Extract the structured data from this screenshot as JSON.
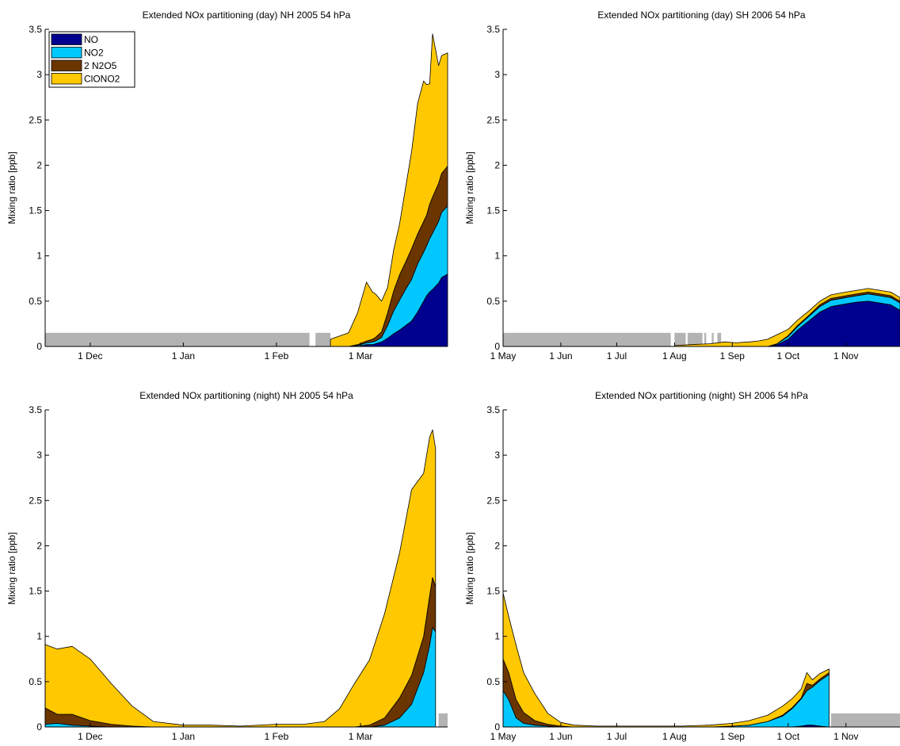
{
  "colors": {
    "NO": "#00008f",
    "NO2": "#00c8ff",
    "2 N2O5": "#6b3500",
    "ClONO2": "#ffc800",
    "missing": "#b3b3b3"
  },
  "chart_data": [
    {
      "type": "area",
      "stacked": true,
      "title": "Extended NOx partitioning (day) NH 2005 54 hPa",
      "xlabel": "",
      "ylabel": "Mixing ratio [ppb]",
      "ylim": [
        0,
        3.5
      ],
      "yticks": [
        "0",
        "0.5",
        "1",
        "1.5",
        "2",
        "2.5",
        "3",
        "3.5"
      ],
      "xlim": [
        "2004-11-16",
        "2005-03-30"
      ],
      "xticks": [
        {
          "date": "2004-12-01",
          "label": "1 Dec"
        },
        {
          "date": "2005-01-01",
          "label": "1 Jan"
        },
        {
          "date": "2005-02-01",
          "label": "1 Feb"
        },
        {
          "date": "2005-03-01",
          "label": "1 Mar"
        }
      ],
      "legend": {
        "position": "top-left",
        "entries": [
          "NO",
          "NO2",
          "2 N2O5",
          "ClONO2"
        ]
      },
      "missing_data": [
        {
          "start": "2004-11-16",
          "end": "2005-02-12",
          "value": 0.15
        },
        {
          "start": "2005-02-14",
          "end": "2005-02-19",
          "value": 0.15
        }
      ],
      "x": [
        "2005-02-19",
        "2005-02-25",
        "2005-02-28",
        "2005-03-03",
        "2005-03-05",
        "2005-03-06",
        "2005-03-08",
        "2005-03-10",
        "2005-03-12",
        "2005-03-14",
        "2005-03-16",
        "2005-03-18",
        "2005-03-20",
        "2005-03-22",
        "2005-03-23",
        "2005-03-24",
        "2005-03-25",
        "2005-03-27",
        "2005-03-28",
        "2005-03-30"
      ],
      "series": [
        {
          "name": "NO",
          "values": [
            0.0,
            0.0,
            0.0,
            0.02,
            0.02,
            0.03,
            0.05,
            0.09,
            0.14,
            0.18,
            0.23,
            0.28,
            0.38,
            0.5,
            0.56,
            0.6,
            0.63,
            0.7,
            0.76,
            0.8
          ]
        },
        {
          "name": "NO2",
          "values": [
            0.0,
            0.0,
            0.01,
            0.02,
            0.03,
            0.03,
            0.05,
            0.14,
            0.25,
            0.33,
            0.4,
            0.46,
            0.53,
            0.54,
            0.55,
            0.59,
            0.62,
            0.68,
            0.72,
            0.75
          ]
        },
        {
          "name": "2 N2O5",
          "values": [
            0.0,
            0.0,
            0.01,
            0.02,
            0.03,
            0.04,
            0.06,
            0.14,
            0.22,
            0.28,
            0.3,
            0.34,
            0.33,
            0.34,
            0.34,
            0.38,
            0.4,
            0.42,
            0.43,
            0.44
          ]
        },
        {
          "name": "ClONO2",
          "values": [
            0.08,
            0.15,
            0.35,
            0.65,
            0.52,
            0.48,
            0.34,
            0.28,
            0.45,
            0.56,
            0.82,
            1.07,
            1.44,
            1.55,
            1.44,
            1.33,
            1.8,
            1.3,
            1.3,
            1.25
          ]
        }
      ]
    },
    {
      "type": "area",
      "stacked": true,
      "title": "Extended NOx partitioning (day) SH 2006 54 hPa",
      "xlabel": "",
      "ylabel": "Mixing ratio [ppb]",
      "ylim": [
        0,
        3.5
      ],
      "yticks": [
        "0",
        "0.5",
        "1",
        "1.5",
        "2",
        "2.5",
        "3",
        "3.5"
      ],
      "xlim": [
        "2006-05-01",
        "2006-11-30"
      ],
      "xticks": [
        {
          "date": "2006-05-01",
          "label": "1 May"
        },
        {
          "date": "2006-06-01",
          "label": "1 Jun"
        },
        {
          "date": "2006-07-01",
          "label": "1 Jul"
        },
        {
          "date": "2006-08-01",
          "label": "1 Aug"
        },
        {
          "date": "2006-09-01",
          "label": "1 Sep"
        },
        {
          "date": "2006-10-01",
          "label": "1 Oct"
        },
        {
          "date": "2006-11-01",
          "label": "1 Nov"
        }
      ],
      "missing_data": [
        {
          "start": "2006-05-01",
          "end": "2006-07-30",
          "value": 0.15
        },
        {
          "start": "2006-08-01",
          "end": "2006-08-07",
          "value": 0.15
        },
        {
          "start": "2006-08-08",
          "end": "2006-08-16",
          "value": 0.15
        },
        {
          "start": "2006-08-17",
          "end": "2006-08-18",
          "value": 0.15
        },
        {
          "start": "2006-08-21",
          "end": "2006-08-22",
          "value": 0.15
        },
        {
          "start": "2006-08-24",
          "end": "2006-08-26",
          "value": 0.15
        }
      ],
      "x": [
        "2006-08-01",
        "2006-08-10",
        "2006-08-20",
        "2006-08-28",
        "2006-09-03",
        "2006-09-10",
        "2006-09-15",
        "2006-09-20",
        "2006-09-25",
        "2006-10-01",
        "2006-10-06",
        "2006-10-12",
        "2006-10-18",
        "2006-10-24",
        "2006-11-01",
        "2006-11-07",
        "2006-11-13",
        "2006-11-19",
        "2006-11-25",
        "2006-11-30"
      ],
      "series": [
        {
          "name": "NO",
          "values": [
            0.0,
            0.0,
            0.0,
            0.0,
            0.0,
            0.0,
            0.0,
            0.0,
            0.02,
            0.08,
            0.18,
            0.28,
            0.38,
            0.44,
            0.47,
            0.49,
            0.5,
            0.48,
            0.46,
            0.4
          ]
        },
        {
          "name": "NO2",
          "values": [
            0.0,
            0.0,
            0.0,
            0.0,
            0.0,
            0.0,
            0.0,
            0.0,
            0.01,
            0.03,
            0.04,
            0.05,
            0.06,
            0.07,
            0.07,
            0.07,
            0.08,
            0.08,
            0.08,
            0.08
          ]
        },
        {
          "name": "2 N2O5",
          "values": [
            0.0,
            0.0,
            0.0,
            0.0,
            0.0,
            0.0,
            0.0,
            0.0,
            0.0,
            0.01,
            0.01,
            0.01,
            0.02,
            0.02,
            0.02,
            0.02,
            0.02,
            0.02,
            0.02,
            0.02
          ]
        },
        {
          "name": "ClONO2",
          "values": [
            0.01,
            0.02,
            0.03,
            0.05,
            0.04,
            0.05,
            0.06,
            0.08,
            0.1,
            0.07,
            0.06,
            0.05,
            0.04,
            0.04,
            0.04,
            0.04,
            0.04,
            0.04,
            0.04,
            0.04
          ]
        }
      ]
    },
    {
      "type": "area",
      "stacked": true,
      "title": "Extended NOx partitioning (night) NH 2005 54 hPa",
      "xlabel": "",
      "ylabel": "Mixing ratio [ppb]",
      "ylim": [
        0,
        3.5
      ],
      "yticks": [
        "0",
        "0.5",
        "1",
        "1.5",
        "2",
        "2.5",
        "3",
        "3.5"
      ],
      "xlim": [
        "2004-11-16",
        "2005-03-30"
      ],
      "xticks": [
        {
          "date": "2004-12-01",
          "label": "1 Dec"
        },
        {
          "date": "2005-01-01",
          "label": "1 Jan"
        },
        {
          "date": "2005-02-01",
          "label": "1 Feb"
        },
        {
          "date": "2005-03-01",
          "label": "1 Mar"
        }
      ],
      "missing_data": [
        {
          "start": "2005-03-27",
          "end": "2005-03-30",
          "value": 0.15
        }
      ],
      "x": [
        "2004-11-16",
        "2004-11-20",
        "2004-11-25",
        "2004-12-01",
        "2004-12-08",
        "2004-12-15",
        "2004-12-22",
        "2005-01-01",
        "2005-01-10",
        "2005-01-20",
        "2005-02-01",
        "2005-02-10",
        "2005-02-17",
        "2005-02-22",
        "2005-02-27",
        "2005-03-04",
        "2005-03-09",
        "2005-03-14",
        "2005-03-18",
        "2005-03-22",
        "2005-03-24",
        "2005-03-25",
        "2005-03-26"
      ],
      "series": [
        {
          "name": "NO",
          "values": [
            0.0,
            0.0,
            0.0,
            0.0,
            0.0,
            0.0,
            0.0,
            0.0,
            0.0,
            0.0,
            0.0,
            0.0,
            0.0,
            0.0,
            0.0,
            0.0,
            0.0,
            0.0,
            0.0,
            0.0,
            0.0,
            0.0,
            0.0
          ]
        },
        {
          "name": "NO2",
          "values": [
            0.03,
            0.04,
            0.02,
            0.01,
            0.0,
            0.0,
            0.0,
            0.0,
            0.0,
            0.0,
            0.0,
            0.0,
            0.0,
            0.0,
            0.0,
            0.0,
            0.02,
            0.1,
            0.25,
            0.6,
            0.9,
            1.1,
            1.05
          ]
        },
        {
          "name": "2 N2O5",
          "values": [
            0.18,
            0.1,
            0.12,
            0.06,
            0.03,
            0.01,
            0.0,
            0.0,
            0.0,
            0.0,
            0.0,
            0.0,
            0.0,
            0.0,
            0.0,
            0.02,
            0.08,
            0.22,
            0.32,
            0.4,
            0.55,
            0.55,
            0.5
          ]
        },
        {
          "name": "ClONO2",
          "values": [
            0.7,
            0.72,
            0.75,
            0.68,
            0.45,
            0.22,
            0.06,
            0.02,
            0.02,
            0.01,
            0.03,
            0.03,
            0.06,
            0.2,
            0.48,
            0.72,
            1.15,
            1.6,
            2.05,
            1.8,
            1.75,
            1.63,
            1.52
          ]
        }
      ]
    },
    {
      "type": "area",
      "stacked": true,
      "title": "Extended NOx partitioning (night) SH 2006 54 hPa",
      "xlabel": "",
      "ylabel": "Mixing ratio [ppb]",
      "ylim": [
        0,
        3.5
      ],
      "yticks": [
        "0",
        "0.5",
        "1",
        "1.5",
        "2",
        "2.5",
        "3",
        "3.5"
      ],
      "xlim": [
        "2006-05-01",
        "2006-11-30"
      ],
      "xticks": [
        {
          "date": "2006-05-01",
          "label": "1 May"
        },
        {
          "date": "2006-06-01",
          "label": "1 Jun"
        },
        {
          "date": "2006-07-01",
          "label": "1 Jul"
        },
        {
          "date": "2006-08-01",
          "label": "1 Aug"
        },
        {
          "date": "2006-09-01",
          "label": "1 Sep"
        },
        {
          "date": "2006-10-01",
          "label": "1 Oct"
        },
        {
          "date": "2006-11-01",
          "label": "1 Nov"
        }
      ],
      "missing_data": [
        {
          "start": "2006-10-24",
          "end": "2006-11-30",
          "value": 0.15
        }
      ],
      "x": [
        "2006-05-01",
        "2006-05-04",
        "2006-05-08",
        "2006-05-12",
        "2006-05-18",
        "2006-05-25",
        "2006-06-01",
        "2006-06-08",
        "2006-06-20",
        "2006-07-05",
        "2006-07-20",
        "2006-08-05",
        "2006-08-20",
        "2006-09-01",
        "2006-09-10",
        "2006-09-20",
        "2006-09-28",
        "2006-10-03",
        "2006-10-08",
        "2006-10-11",
        "2006-10-14",
        "2006-10-18",
        "2006-10-23"
      ],
      "series": [
        {
          "name": "NO",
          "values": [
            0.0,
            0.0,
            0.0,
            0.0,
            0.0,
            0.0,
            0.0,
            0.0,
            0.0,
            0.0,
            0.0,
            0.0,
            0.0,
            0.0,
            0.0,
            0.0,
            0.0,
            0.0,
            0.01,
            0.02,
            0.02,
            0.01,
            0.0
          ]
        },
        {
          "name": "NO2",
          "values": [
            0.4,
            0.3,
            0.1,
            0.04,
            0.02,
            0.01,
            0.0,
            0.0,
            0.0,
            0.0,
            0.0,
            0.0,
            0.0,
            0.01,
            0.02,
            0.06,
            0.12,
            0.2,
            0.3,
            0.38,
            0.42,
            0.5,
            0.58
          ]
        },
        {
          "name": "2 N2O5",
          "values": [
            0.35,
            0.3,
            0.2,
            0.12,
            0.05,
            0.02,
            0.01,
            0.0,
            0.0,
            0.0,
            0.0,
            0.0,
            0.0,
            0.0,
            0.0,
            0.0,
            0.01,
            0.01,
            0.01,
            0.08,
            0.02,
            0.02,
            0.02
          ]
        },
        {
          "name": "ClONO2",
          "values": [
            0.73,
            0.62,
            0.6,
            0.44,
            0.3,
            0.12,
            0.04,
            0.02,
            0.01,
            0.01,
            0.01,
            0.01,
            0.02,
            0.03,
            0.05,
            0.07,
            0.1,
            0.1,
            0.1,
            0.12,
            0.06,
            0.06,
            0.04
          ]
        }
      ]
    }
  ]
}
